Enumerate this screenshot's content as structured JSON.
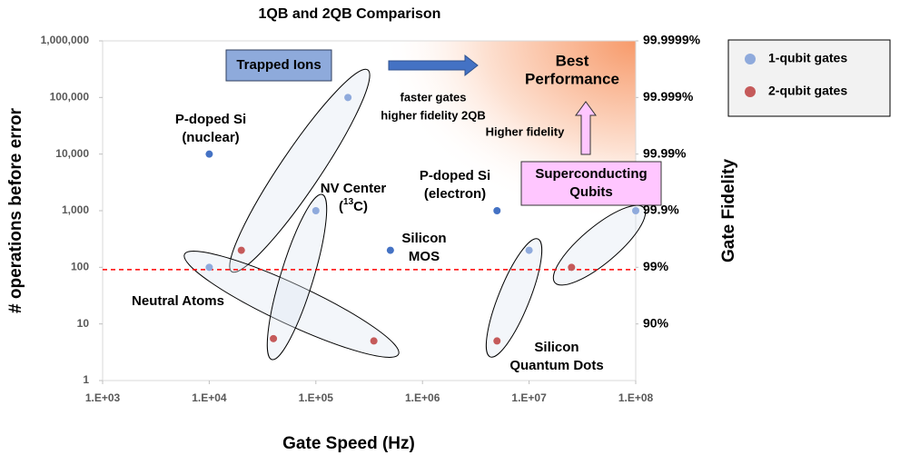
{
  "chart_data": {
    "type": "scatter",
    "title": "1QB and 2QB Comparison",
    "x_label": "Gate Speed (Hz)",
    "y_label": "# operations before error",
    "y2_label": "Gate Fidelity",
    "x_scale": "log",
    "y_scale": "log",
    "y2_scale": "fidelity",
    "xlim": [
      1000,
      100000000
    ],
    "ylim": [
      1,
      1000000
    ],
    "y2lim": [
      0,
      99.9999
    ],
    "xticks": [
      {
        "value": 1000,
        "label": "1.E+03"
      },
      {
        "value": 10000,
        "label": "1.E+04"
      },
      {
        "value": 100000,
        "label": "1.E+05"
      },
      {
        "value": 1000000,
        "label": "1.E+06"
      },
      {
        "value": 10000000,
        "label": "1.E+07"
      },
      {
        "value": 100000000,
        "label": "1.E+08"
      }
    ],
    "yticks": [
      1,
      10,
      100,
      {
        "value": 1000,
        "label": "1,000"
      },
      {
        "value": 10000,
        "label": "10,000"
      },
      {
        "value": 100000,
        "label": "100,000"
      },
      {
        "value": 1000000,
        "label": "1,000,000"
      }
    ],
    "y2ticks": [
      {
        "value": 90,
        "label": "90%"
      },
      {
        "value": 99,
        "label": "99%"
      },
      {
        "value": 99.9,
        "label": "99.9%"
      },
      {
        "value": 99.99,
        "label": "99.99%"
      },
      {
        "value": 99.999,
        "label": "99.999%"
      },
      {
        "value": 99.9999,
        "label": "99.9999%"
      }
    ],
    "legend_position": "right",
    "series": [
      {
        "name": "1-qubit gates",
        "color": "#8faadc",
        "x": [
          10000,
          200000,
          100000,
          500000,
          5000000,
          10000000,
          100000000,
          10000
        ],
        "values": [
          10000,
          100000,
          1000,
          200,
          1000,
          200,
          1000,
          100
        ],
        "point_colors": [
          "#4472c4",
          "#8faadc",
          "#8faadc",
          "#4472c4",
          "#4472c4",
          "#8faadc",
          "#8faadc",
          "#8faadc"
        ]
      },
      {
        "name": "2-qubit gates",
        "color": "#c55a5a",
        "x": [
          20000,
          40000,
          350000,
          5000000,
          25000000
        ],
        "values": [
          200,
          5.5,
          5,
          5,
          100
        ]
      }
    ],
    "reference_line": {
      "value": 91,
      "color": "#ff0000"
    },
    "annotations": [
      {
        "lines": [
          "Trapped Ions"
        ]
      },
      {
        "lines": [
          "faster gates",
          "higher fidelity 2QB"
        ]
      },
      {
        "lines": [
          "Best",
          "Performance"
        ]
      },
      {
        "lines": [
          "Higher fidelity"
        ]
      },
      {
        "lines": [
          "Superconducting",
          "Qubits"
        ]
      },
      {
        "lines": [
          "P-doped Si",
          "(nuclear)"
        ]
      },
      {
        "lines": [
          "NV Center",
          [
            "(",
            {
              "sup": "13"
            },
            "C)"
          ]
        ]
      },
      {
        "lines": [
          "Silicon",
          "MOS"
        ]
      },
      {
        "lines": [
          "P-doped Si",
          "(electron)"
        ]
      },
      {
        "lines": [
          "Neutral Atoms"
        ]
      },
      {
        "lines": [
          "Silicon",
          "Quantum Dots"
        ]
      }
    ]
  }
}
